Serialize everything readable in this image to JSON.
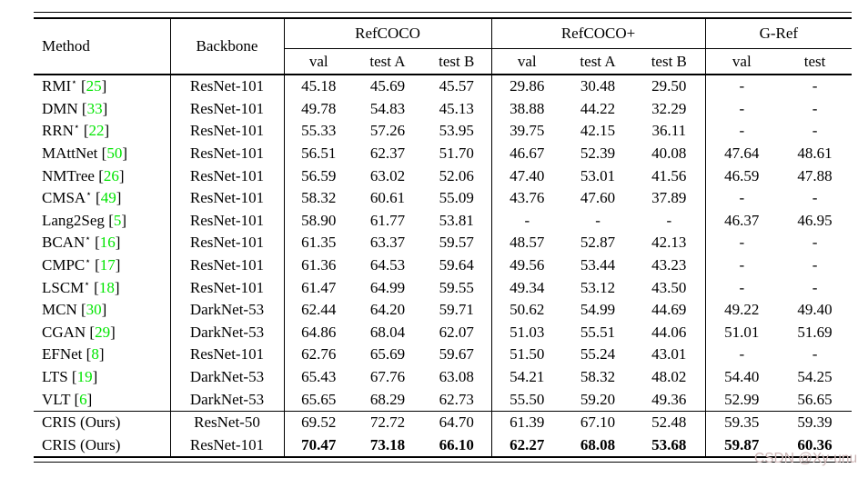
{
  "watermark": {
    "text": "CSDN @Xy-unu"
  },
  "colors": {
    "citation_green": "#00E500",
    "watermark_pink": "#CDB6B6",
    "rule_black": "#000000"
  },
  "table": {
    "headers": {
      "method": "Method",
      "backbone": "Backbone"
    },
    "groups": [
      {
        "label": "RefCOCO",
        "subcols": [
          "val",
          "test A",
          "test B"
        ]
      },
      {
        "label": "RefCOCO+",
        "subcols": [
          "val",
          "test A",
          "test B"
        ]
      },
      {
        "label": "G-Ref",
        "subcols": [
          "val",
          "test"
        ]
      }
    ],
    "cite_brackets": {
      "open": "[",
      "close": "]"
    },
    "star_glyph": "⋆",
    "rows": [
      {
        "method": "RMI",
        "star": true,
        "cite": "25",
        "backbone": "ResNet-101",
        "values": [
          "45.18",
          "45.69",
          "45.57",
          "29.86",
          "30.48",
          "29.50",
          "-",
          "-"
        ],
        "section": "main",
        "bold": false
      },
      {
        "method": "DMN",
        "star": false,
        "cite": "33",
        "backbone": "ResNet-101",
        "values": [
          "49.78",
          "54.83",
          "45.13",
          "38.88",
          "44.22",
          "32.29",
          "-",
          "-"
        ],
        "section": "main",
        "bold": false
      },
      {
        "method": "RRN",
        "star": true,
        "cite": "22",
        "backbone": "ResNet-101",
        "values": [
          "55.33",
          "57.26",
          "53.95",
          "39.75",
          "42.15",
          "36.11",
          "-",
          "-"
        ],
        "section": "main",
        "bold": false
      },
      {
        "method": "MAttNet",
        "star": false,
        "cite": "50",
        "backbone": "ResNet-101",
        "values": [
          "56.51",
          "62.37",
          "51.70",
          "46.67",
          "52.39",
          "40.08",
          "47.64",
          "48.61"
        ],
        "section": "main",
        "bold": false
      },
      {
        "method": "NMTree",
        "star": false,
        "cite": "26",
        "backbone": "ResNet-101",
        "values": [
          "56.59",
          "63.02",
          "52.06",
          "47.40",
          "53.01",
          "41.56",
          "46.59",
          "47.88"
        ],
        "section": "main",
        "bold": false
      },
      {
        "method": "CMSA",
        "star": true,
        "cite": "49",
        "backbone": "ResNet-101",
        "values": [
          "58.32",
          "60.61",
          "55.09",
          "43.76",
          "47.60",
          "37.89",
          "-",
          "-"
        ],
        "section": "main",
        "bold": false
      },
      {
        "method": "Lang2Seg",
        "star": false,
        "cite": "5",
        "backbone": "ResNet-101",
        "values": [
          "58.90",
          "61.77",
          "53.81",
          "-",
          "-",
          "-",
          "46.37",
          "46.95"
        ],
        "section": "main",
        "bold": false
      },
      {
        "method": "BCAN",
        "star": true,
        "cite": "16",
        "backbone": "ResNet-101",
        "values": [
          "61.35",
          "63.37",
          "59.57",
          "48.57",
          "52.87",
          "42.13",
          "-",
          "-"
        ],
        "section": "main",
        "bold": false
      },
      {
        "method": "CMPC",
        "star": true,
        "cite": "17",
        "backbone": "ResNet-101",
        "values": [
          "61.36",
          "64.53",
          "59.64",
          "49.56",
          "53.44",
          "43.23",
          "-",
          "-"
        ],
        "section": "main",
        "bold": false
      },
      {
        "method": "LSCM",
        "star": true,
        "cite": "18",
        "backbone": "ResNet-101",
        "values": [
          "61.47",
          "64.99",
          "59.55",
          "49.34",
          "53.12",
          "43.50",
          "-",
          "-"
        ],
        "section": "main",
        "bold": false
      },
      {
        "method": "MCN",
        "star": false,
        "cite": "30",
        "backbone": "DarkNet-53",
        "values": [
          "62.44",
          "64.20",
          "59.71",
          "50.62",
          "54.99",
          "44.69",
          "49.22",
          "49.40"
        ],
        "section": "main",
        "bold": false
      },
      {
        "method": "CGAN",
        "star": false,
        "cite": "29",
        "backbone": "DarkNet-53",
        "values": [
          "64.86",
          "68.04",
          "62.07",
          "51.03",
          "55.51",
          "44.06",
          "51.01",
          "51.69"
        ],
        "section": "main",
        "bold": false
      },
      {
        "method": "EFNet",
        "star": false,
        "cite": "8",
        "backbone": "ResNet-101",
        "values": [
          "62.76",
          "65.69",
          "59.67",
          "51.50",
          "55.24",
          "43.01",
          "-",
          "-"
        ],
        "section": "main",
        "bold": false
      },
      {
        "method": "LTS",
        "star": false,
        "cite": "19",
        "backbone": "DarkNet-53",
        "values": [
          "65.43",
          "67.76",
          "63.08",
          "54.21",
          "58.32",
          "48.02",
          "54.40",
          "54.25"
        ],
        "section": "main",
        "bold": false
      },
      {
        "method": "VLT",
        "star": false,
        "cite": "6",
        "backbone": "DarkNet-53",
        "values": [
          "65.65",
          "68.29",
          "62.73",
          "55.50",
          "59.20",
          "49.36",
          "52.99",
          "56.65"
        ],
        "section": "main",
        "bold": false
      },
      {
        "method": "CRIS (Ours)",
        "star": false,
        "cite": null,
        "backbone": "ResNet-50",
        "values": [
          "69.52",
          "72.72",
          "64.70",
          "61.39",
          "67.10",
          "52.48",
          "59.35",
          "59.39"
        ],
        "section": "ours",
        "bold": false
      },
      {
        "method": "CRIS (Ours)",
        "star": false,
        "cite": null,
        "backbone": "ResNet-101",
        "values": [
          "70.47",
          "73.18",
          "66.10",
          "62.27",
          "68.08",
          "53.68",
          "59.87",
          "60.36"
        ],
        "section": "ours",
        "bold": true
      }
    ]
  }
}
